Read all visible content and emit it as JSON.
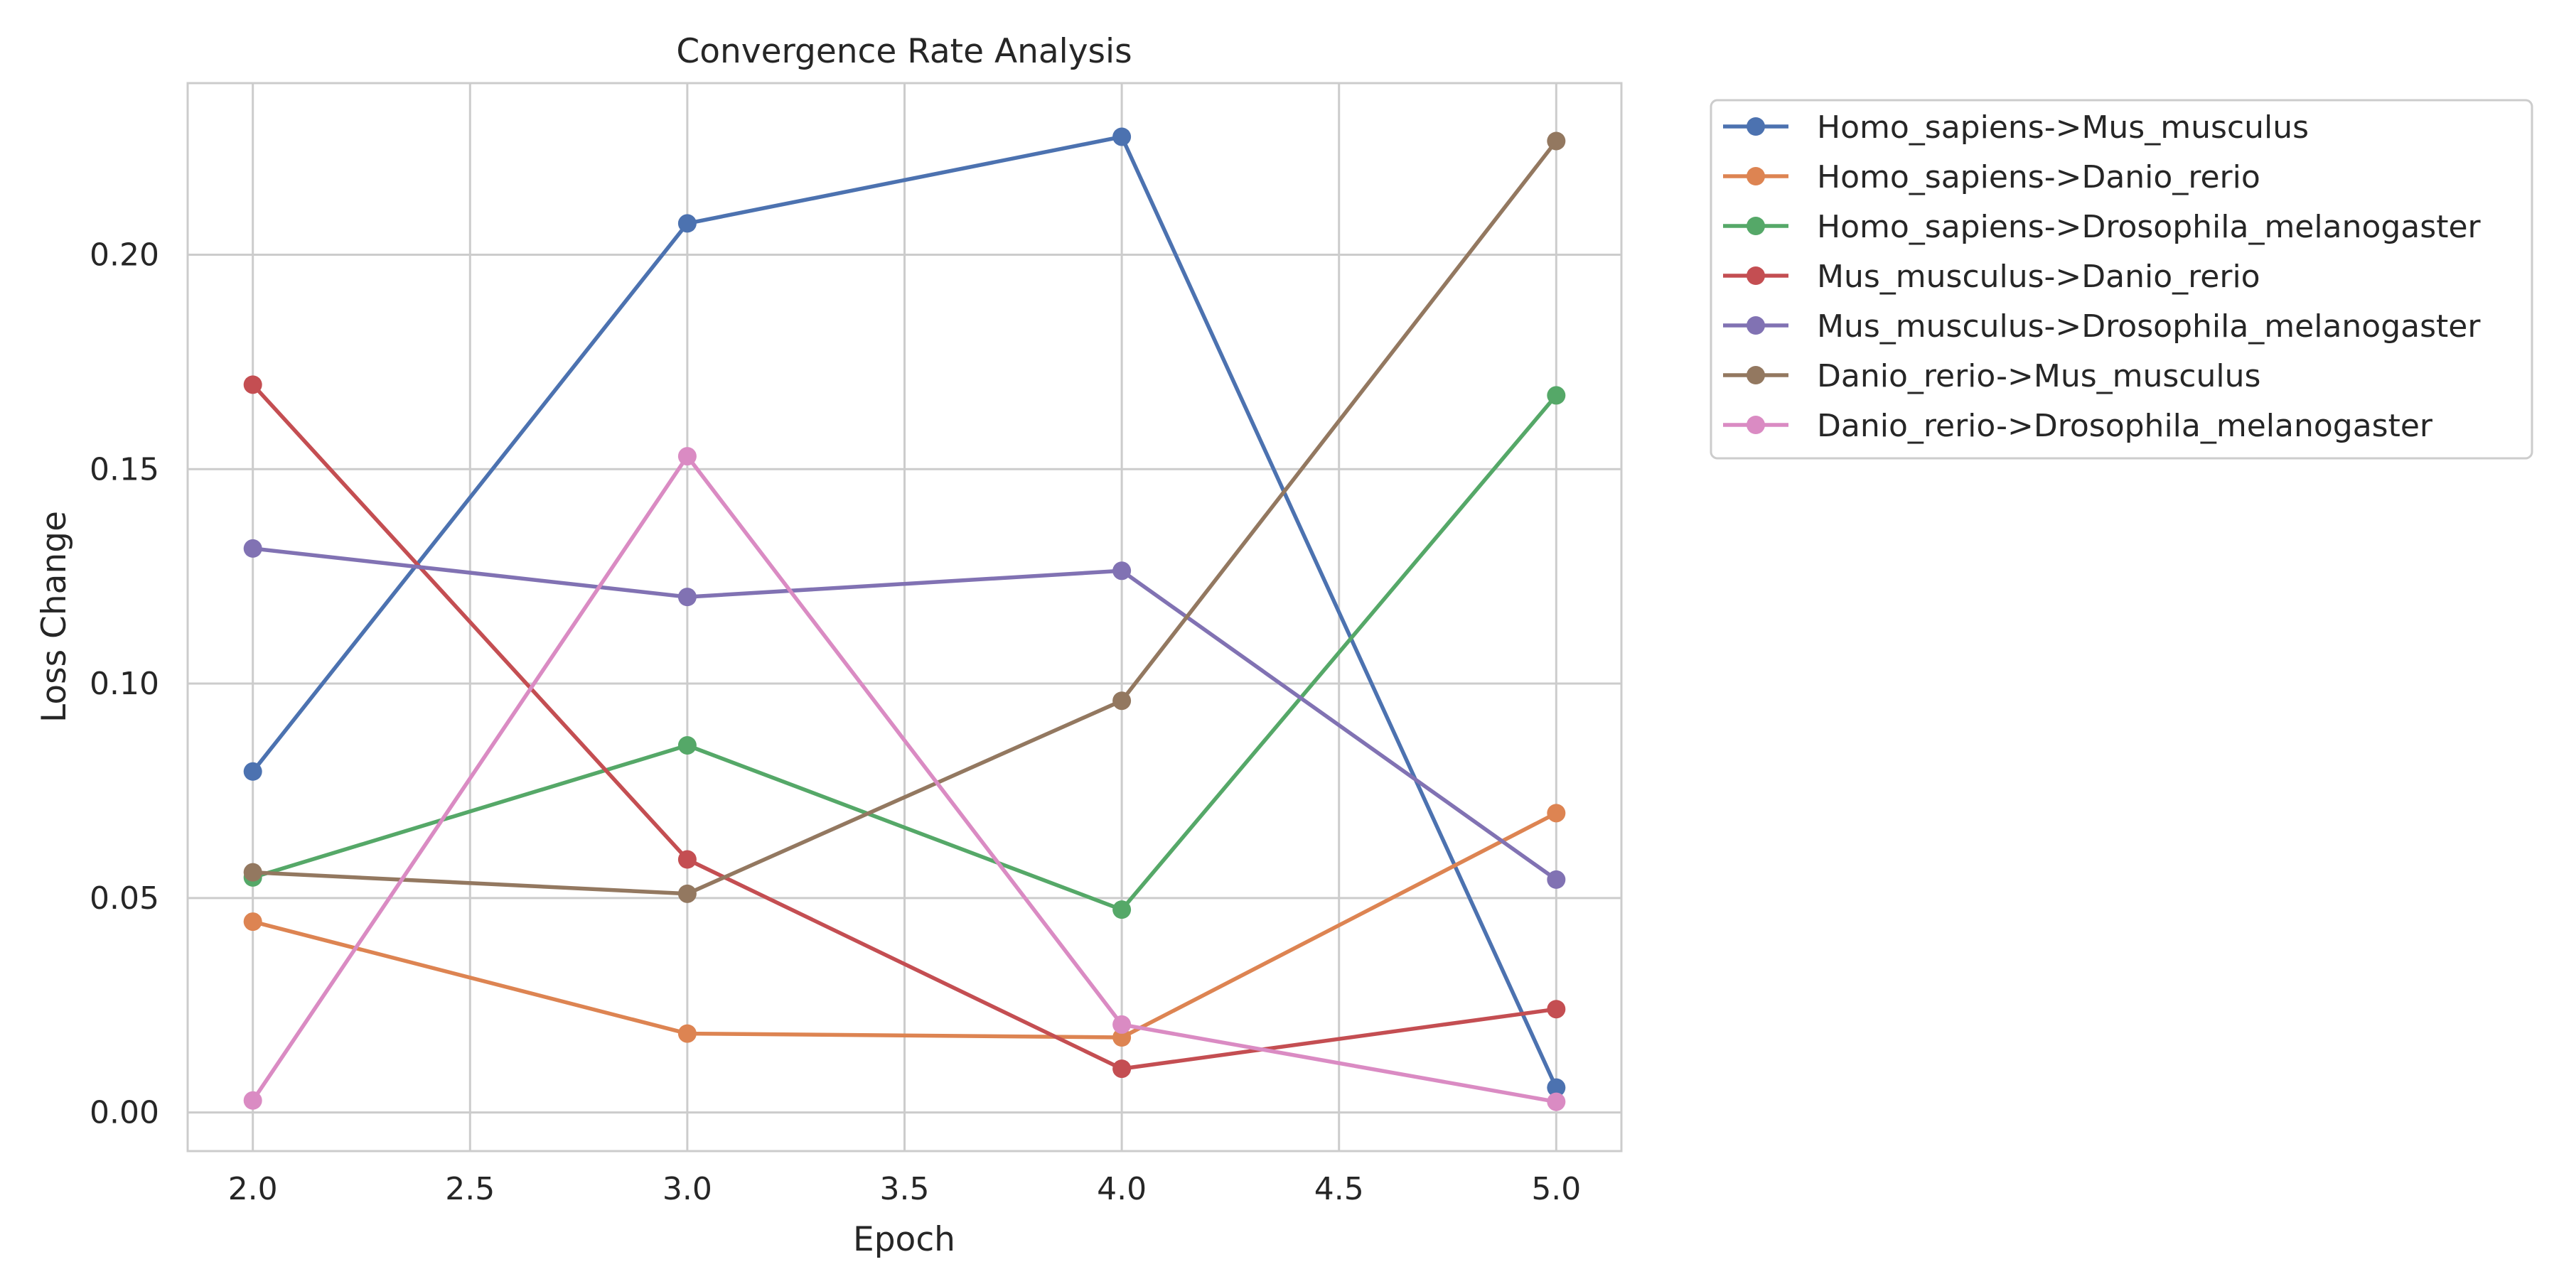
{
  "chart_data": {
    "type": "line",
    "title": "Convergence Rate Analysis",
    "xlabel": "Epoch",
    "ylabel": "Loss Change",
    "xlim": [
      1.85,
      5.15
    ],
    "ylim": [
      -0.009,
      0.24
    ],
    "xticks": [
      2.0,
      2.5,
      3.0,
      3.5,
      4.0,
      4.5,
      5.0
    ],
    "xtick_labels": [
      "2.0",
      "2.5",
      "3.0",
      "3.5",
      "4.0",
      "4.5",
      "5.0"
    ],
    "yticks": [
      0.0,
      0.05,
      0.1,
      0.15,
      0.2
    ],
    "ytick_labels": [
      "0.00",
      "0.05",
      "0.10",
      "0.15",
      "0.20"
    ],
    "grid": true,
    "legend_position": "outside-right",
    "x": [
      2.0,
      3.0,
      4.0,
      5.0
    ],
    "series": [
      {
        "name": "Homo_sapiens->Mus_musculus",
        "color": "#4c72b0",
        "values": [
          0.0795,
          0.2073,
          0.2275,
          0.0058
        ]
      },
      {
        "name": "Homo_sapiens->Danio_rerio",
        "color": "#dd8452",
        "values": [
          0.0445,
          0.0184,
          0.0175,
          0.0698
        ]
      },
      {
        "name": "Homo_sapiens->Drosophila_melanogaster",
        "color": "#55a868",
        "values": [
          0.0548,
          0.0856,
          0.0473,
          0.1672
        ]
      },
      {
        "name": "Mus_musculus->Danio_rerio",
        "color": "#c44e52",
        "values": [
          0.1697,
          0.059,
          0.0102,
          0.0241
        ]
      },
      {
        "name": "Mus_musculus->Drosophila_melanogaster",
        "color": "#8172b3",
        "values": [
          0.1315,
          0.1202,
          0.1263,
          0.0543
        ]
      },
      {
        "name": "Danio_rerio->Mus_musculus",
        "color": "#937860",
        "values": [
          0.056,
          0.051,
          0.096,
          0.2265
        ]
      },
      {
        "name": "Danio_rerio->Drosophila_melanogaster",
        "color": "#da8bc3",
        "values": [
          0.0028,
          0.153,
          0.0205,
          0.0025
        ]
      }
    ]
  }
}
